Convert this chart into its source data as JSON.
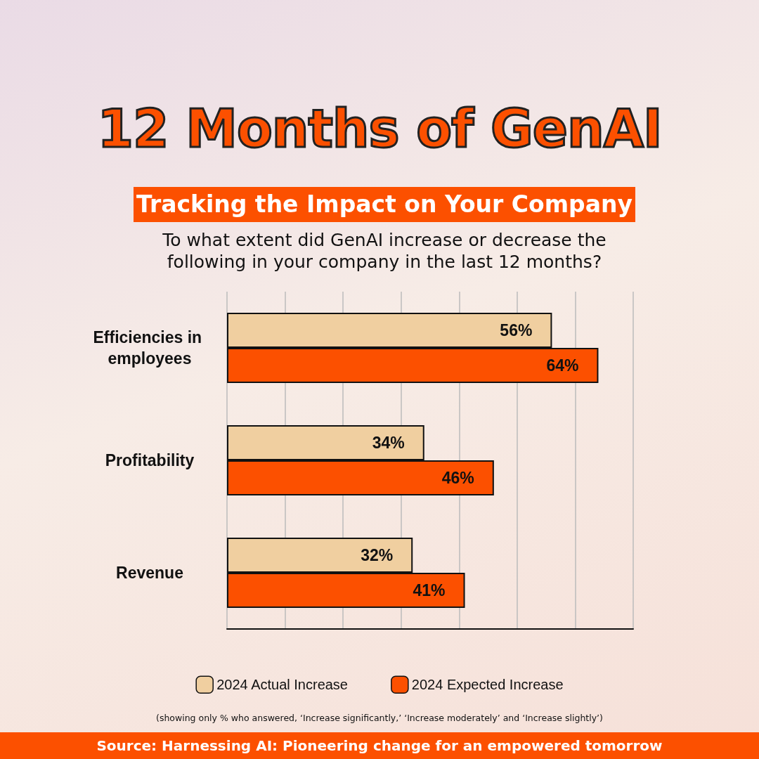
{
  "chart_data": {
    "type": "bar",
    "orientation": "horizontal",
    "title": "12 Months of GenAI",
    "subtitle": "Tracking the Impact on Your Company",
    "annotations": [
      "To what extent did GenAI increase or decrease the following in your company in the last 12 months?",
      "(showing only % who answered, ‘Increase significantly,’ ‘Increase moderately’ and ‘Increase slightly’)",
      "Source: Harnessing AI: Pioneering  change for an empowered tomorrow"
    ],
    "categories": [
      "Efficiencies in employees",
      "Profitability",
      "Revenue"
    ],
    "series": [
      {
        "name": "2024 Actual Increase",
        "color": "#f0cfa0",
        "values": [
          56,
          34,
          32
        ],
        "value_labels": [
          "56%",
          "34%",
          "32%"
        ]
      },
      {
        "name": "2024 Expected Increase",
        "color": "#fc5000",
        "values": [
          64,
          46,
          41
        ],
        "value_labels": [
          "64%",
          "46%",
          "41%"
        ]
      }
    ],
    "xlim": [
      0,
      70
    ],
    "xticks": [
      {
        "value": 0,
        "label": null
      },
      {
        "value": 10,
        "label": null
      },
      {
        "value": 20,
        "label": null
      },
      {
        "value": 30,
        "label": null
      },
      {
        "value": 40,
        "label": null
      },
      {
        "value": 50,
        "label": null
      },
      {
        "value": 60,
        "label": null
      },
      {
        "value": 70,
        "label": null
      }
    ],
    "grid": "x",
    "legend": "bottom",
    "tick_labels": "y"
  }
}
